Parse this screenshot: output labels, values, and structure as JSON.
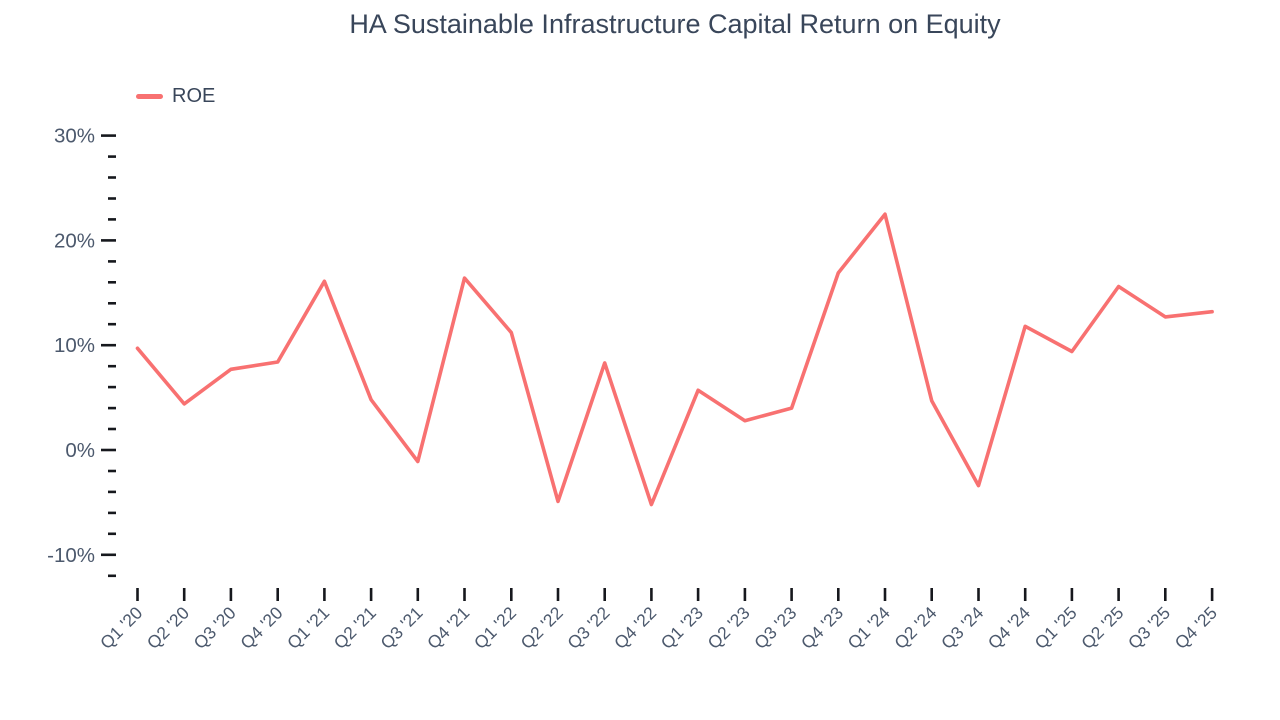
{
  "chart": {
    "legend": {
      "roe_label": "ROE"
    }
  },
  "chart_data": {
    "type": "line",
    "title": "HA Sustainable Infrastructure Capital Return on Equity",
    "categories": [
      "Q1 '20",
      "Q2 '20",
      "Q3 '20",
      "Q4 '20",
      "Q1 '21",
      "Q2 '21",
      "Q3 '21",
      "Q4 '21",
      "Q1 '22",
      "Q2 '22",
      "Q3 '22",
      "Q4 '22",
      "Q1 '23",
      "Q2 '23",
      "Q3 '23",
      "Q4 '23",
      "Q1 '24",
      "Q2 '24",
      "Q3 '24",
      "Q4 '24",
      "Q1 '25",
      "Q2 '25",
      "Q3 '25",
      "Q4 '25"
    ],
    "series": [
      {
        "name": "ROE",
        "color": "#F87171",
        "values": [
          9.7,
          4.4,
          7.7,
          8.4,
          16.1,
          4.8,
          -1.1,
          16.4,
          11.2,
          -4.9,
          8.3,
          -5.2,
          5.7,
          2.8,
          4.0,
          16.9,
          22.5,
          4.7,
          -3.4,
          11.8,
          9.4,
          15.6,
          12.7,
          13.2
        ]
      }
    ],
    "unit": "%",
    "xlabel": "",
    "ylabel": "",
    "ylim": [
      -12,
      30
    ],
    "yticks_major": [
      30,
      20,
      10,
      0,
      -10
    ],
    "ytick_labels": [
      "30%",
      "20%",
      "10%",
      "0%",
      "-10%"
    ],
    "ytick_minor_step": 2,
    "ytick_minor_range": [
      -12,
      28
    ],
    "grid": false,
    "legend_position": "top-left",
    "style": {
      "background": "#FFFFFF",
      "line_color": "#F87171",
      "title_color": "#39465A",
      "axis_label_color": "#4C596D",
      "tick_color": "#16181D"
    }
  }
}
